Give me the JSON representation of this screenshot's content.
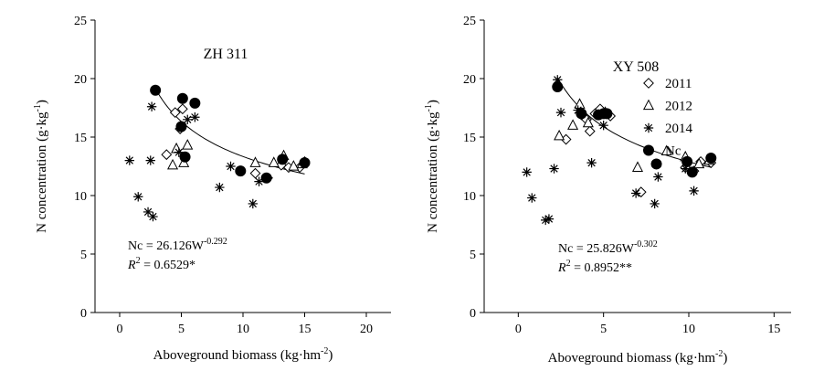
{
  "chart_data": [
    {
      "type": "scatter",
      "title": "ZH 311",
      "xlabel": "Aboveground biomass (kg·hm",
      "xlabel_sup": "-2",
      "xlabel_end": ")",
      "ylabel": "N concentration (g·kg",
      "ylabel_sup": "-1",
      "ylabel_end": ")",
      "xlim": [
        -2,
        22
      ],
      "ylim": [
        0,
        25
      ],
      "xticks": [
        0,
        5,
        10,
        15,
        20
      ],
      "yticks": [
        0,
        5,
        10,
        15,
        20,
        25
      ],
      "grid": false,
      "equation": {
        "line1_prefix": "Nc = 26.126W",
        "line1_sup": "-0.292",
        "r2_label": "R",
        "r2_sup": "2",
        "r2_value": " = 0.6529*"
      },
      "fit": {
        "a": 26.126,
        "b": -0.292,
        "x_range": [
          2.9,
          15
        ]
      },
      "series": [
        {
          "name": "2011",
          "marker": "diamond",
          "points": [
            [
              3.8,
              13.5
            ],
            [
              4.5,
              17.1
            ],
            [
              4.9,
              15.7
            ],
            [
              5.1,
              17.4
            ],
            [
              11,
              11.9
            ],
            [
              12,
              11.5
            ],
            [
              13.1,
              12.6
            ],
            [
              13.7,
              12.4
            ],
            [
              14.6,
              12.4
            ],
            [
              15,
              12.9
            ]
          ]
        },
        {
          "name": "2012",
          "marker": "triangle",
          "points": [
            [
              4.3,
              12.6
            ],
            [
              4.6,
              14.0
            ],
            [
              5.2,
              12.8
            ],
            [
              5.5,
              14.3
            ],
            [
              11,
              12.8
            ],
            [
              12.5,
              12.8
            ],
            [
              13.3,
              13.4
            ],
            [
              14.1,
              12.5
            ],
            [
              14.8,
              12.7
            ]
          ]
        },
        {
          "name": "2014",
          "marker": "star",
          "points": [
            [
              0.8,
              13.0
            ],
            [
              1.5,
              9.9
            ],
            [
              2.3,
              8.6
            ],
            [
              2.5,
              13.0
            ],
            [
              2.7,
              8.2
            ],
            [
              2.6,
              17.6
            ],
            [
              4.8,
              13.7
            ],
            [
              5.5,
              16.5
            ],
            [
              6.1,
              16.7
            ],
            [
              8.1,
              10.7
            ],
            [
              9,
              12.5
            ],
            [
              10.8,
              9.3
            ],
            [
              11.3,
              11.2
            ]
          ]
        },
        {
          "name": "Nc",
          "marker": "circle",
          "points": [
            [
              2.9,
              19.0
            ],
            [
              5,
              15.9
            ],
            [
              5.1,
              18.3
            ],
            [
              5.3,
              13.3
            ],
            [
              6.1,
              17.9
            ],
            [
              9.8,
              12.1
            ],
            [
              11.9,
              11.5
            ],
            [
              13.2,
              13.1
            ],
            [
              15,
              12.8
            ]
          ]
        }
      ]
    },
    {
      "type": "scatter",
      "title": "XY 508",
      "xlabel": "Aboveground biomass (kg·hm",
      "xlabel_sup": "-2",
      "xlabel_end": ")",
      "ylabel": "N concentration (g·kg",
      "ylabel_sup": "-1",
      "ylabel_end": ")",
      "xlim": [
        -2,
        16
      ],
      "ylim": [
        0,
        25
      ],
      "xticks": [
        0,
        5,
        10,
        15
      ],
      "yticks": [
        0,
        5,
        10,
        15,
        20,
        25
      ],
      "grid": false,
      "legend_position": "top-right",
      "equation": {
        "line1_prefix": "Nc = 25.826W",
        "line1_sup": "-0.302",
        "r2_label": "R",
        "r2_sup": "2",
        "r2_value": " = 0.8952**"
      },
      "fit": {
        "a": 25.826,
        "b": -0.302,
        "x_range": [
          2.3,
          11.3
        ]
      },
      "series": [
        {
          "name": "2011",
          "marker": "diamond",
          "points": [
            [
              2.8,
              14.8
            ],
            [
              3.7,
              16.9
            ],
            [
              4,
              16.5
            ],
            [
              4.2,
              15.5
            ],
            [
              4.5,
              17.0
            ],
            [
              4.8,
              17.4
            ],
            [
              5.4,
              16.8
            ],
            [
              7.2,
              10.3
            ],
            [
              9.8,
              12.4
            ],
            [
              10.3,
              12.1
            ],
            [
              10.7,
              12.9
            ],
            [
              11.3,
              12.8
            ]
          ]
        },
        {
          "name": "2012",
          "marker": "triangle",
          "points": [
            [
              2.4,
              15.1
            ],
            [
              3.2,
              16.0
            ],
            [
              3.6,
              17.8
            ],
            [
              4.1,
              16.2
            ],
            [
              5.1,
              17.1
            ],
            [
              7,
              12.4
            ],
            [
              8.7,
              13.8
            ],
            [
              9.8,
              13.3
            ],
            [
              10.6,
              12.7
            ],
            [
              11.2,
              13.0
            ]
          ]
        },
        {
          "name": "2014",
          "marker": "star",
          "points": [
            [
              0.5,
              12.0
            ],
            [
              0.8,
              9.8
            ],
            [
              1.6,
              7.9
            ],
            [
              1.8,
              8.0
            ],
            [
              2.1,
              12.3
            ],
            [
              2.3,
              19.9
            ],
            [
              2.5,
              17.1
            ],
            [
              3.5,
              17.3
            ],
            [
              4.3,
              12.8
            ],
            [
              5,
              16.0
            ],
            [
              6.9,
              10.2
            ],
            [
              8,
              9.3
            ],
            [
              8.2,
              11.6
            ],
            [
              9.8,
              12.3
            ],
            [
              10.3,
              10.4
            ]
          ]
        },
        {
          "name": "Nc",
          "marker": "circle",
          "points": [
            [
              2.3,
              19.3
            ],
            [
              3.7,
              17.0
            ],
            [
              4.7,
              16.9
            ],
            [
              5,
              17.0
            ],
            [
              5.2,
              17.0
            ],
            [
              8.1,
              12.7
            ],
            [
              9.9,
              12.9
            ],
            [
              10.2,
              12.0
            ],
            [
              11.3,
              13.2
            ]
          ]
        }
      ]
    }
  ]
}
